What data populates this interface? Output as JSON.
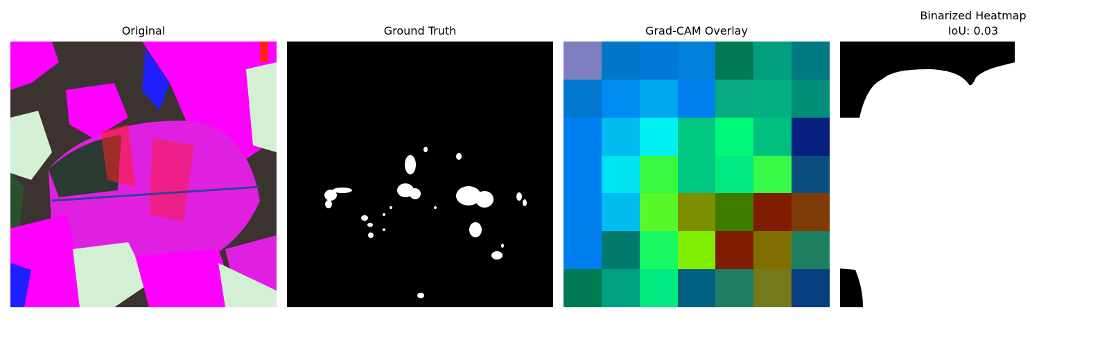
{
  "panels": [
    {
      "title": "Original"
    },
    {
      "title": "Ground Truth"
    },
    {
      "title": "Grad-CAM Overlay"
    },
    {
      "title_line1": "Binarized Heatmap",
      "title_line2": "IoU: 0.03"
    }
  ],
  "gradcam_colors": [
    [
      "#7f7fbf",
      "#0077c8",
      "#0078d8",
      "#0080d8",
      "#007a55",
      "#039e80",
      "#007a80"
    ],
    [
      "#0077d0",
      "#008cf0",
      "#00a6f0",
      "#0080ee",
      "#06aa80",
      "#04b080",
      "#008e78"
    ],
    [
      "#0080f0",
      "#00bcf0",
      "#00f0f4",
      "#00c880",
      "#00f878",
      "#00c080",
      "#072080"
    ],
    [
      "#0080f0",
      "#00e4f4",
      "#38f840",
      "#00c880",
      "#00e880",
      "#38f848",
      "#0a4e80"
    ],
    [
      "#0080ee",
      "#00bcf0",
      "#58f828",
      "#7e9000",
      "#3e7c00",
      "#801c00",
      "#803c08"
    ],
    [
      "#0080ee",
      "#007a6e",
      "#18f860",
      "#80ee00",
      "#801c00",
      "#806e00",
      "#1e7e60"
    ],
    [
      "#007a55",
      "#00a080",
      "#00e880",
      "#006080",
      "#1e7e62",
      "#747a18",
      "#083e80"
    ]
  ]
}
